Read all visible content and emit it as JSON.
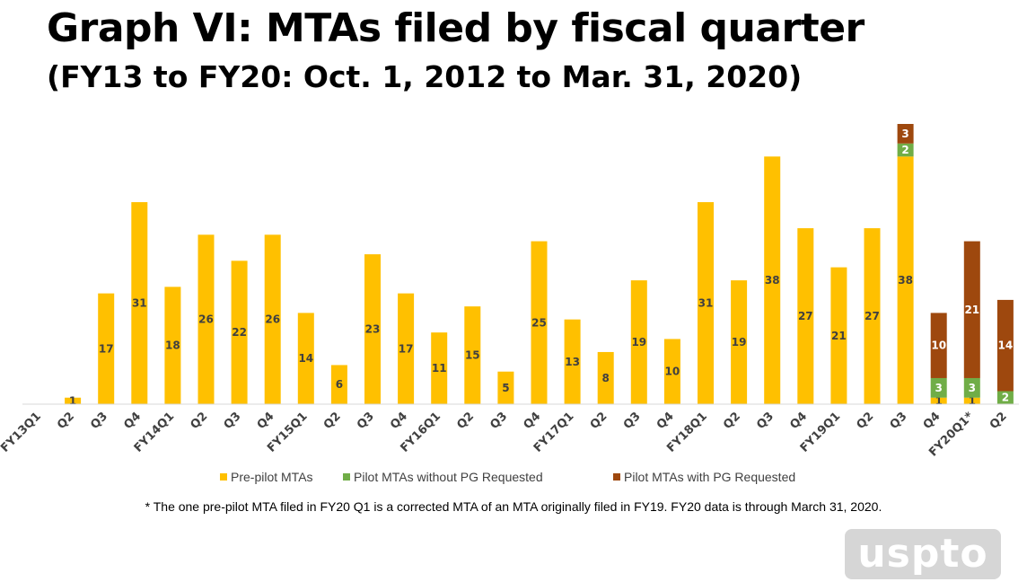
{
  "chart_data": {
    "type": "bar",
    "stacked": true,
    "title": "Graph VI: MTAs filed by fiscal quarter",
    "subtitle": "(FY13 to FY20: Oct. 1, 2012 to Mar. 31, 2020)",
    "categories": [
      "FY13Q1",
      "Q2",
      "Q3",
      "Q4",
      "FY14Q1",
      "Q2",
      "Q3",
      "Q4",
      "FY15Q1",
      "Q2",
      "Q3",
      "Q4",
      "FY16Q1",
      "Q2",
      "Q3",
      "Q4",
      "FY17Q1",
      "Q2",
      "Q3",
      "Q4",
      "FY18Q1",
      "Q2",
      "Q3",
      "Q4",
      "FY19Q1",
      "Q2",
      "Q3",
      "Q4",
      "FY20Q1*",
      "Q2"
    ],
    "series": [
      {
        "name": "Pre-pilot MTAs",
        "color": "#FFC000",
        "values": [
          0,
          1,
          17,
          31,
          18,
          26,
          22,
          26,
          14,
          6,
          23,
          17,
          11,
          15,
          5,
          25,
          13,
          8,
          19,
          10,
          31,
          19,
          38,
          27,
          21,
          27,
          38,
          1,
          1,
          0
        ]
      },
      {
        "name": "Pilot MTAs without PG Requested",
        "color": "#70AD47",
        "values": [
          0,
          0,
          0,
          0,
          0,
          0,
          0,
          0,
          0,
          0,
          0,
          0,
          0,
          0,
          0,
          0,
          0,
          0,
          0,
          0,
          0,
          0,
          0,
          0,
          0,
          0,
          2,
          3,
          3,
          2
        ]
      },
      {
        "name": "Pilot MTAs with PG Requested",
        "color": "#9E480E",
        "values": [
          0,
          0,
          0,
          0,
          0,
          0,
          0,
          0,
          0,
          0,
          0,
          0,
          0,
          0,
          0,
          0,
          0,
          0,
          0,
          0,
          0,
          0,
          0,
          0,
          0,
          0,
          3,
          10,
          21,
          14
        ]
      }
    ],
    "ylim": [
      0,
      43
    ],
    "xlabel": "",
    "ylabel": "",
    "grid": false,
    "legend": "bottom"
  },
  "footnote": "* The one pre-pilot MTA filed in FY20 Q1 is a corrected MTA of an MTA originally filed in FY19. FY20 data is through March 31, 2020.",
  "logo": "uspto"
}
